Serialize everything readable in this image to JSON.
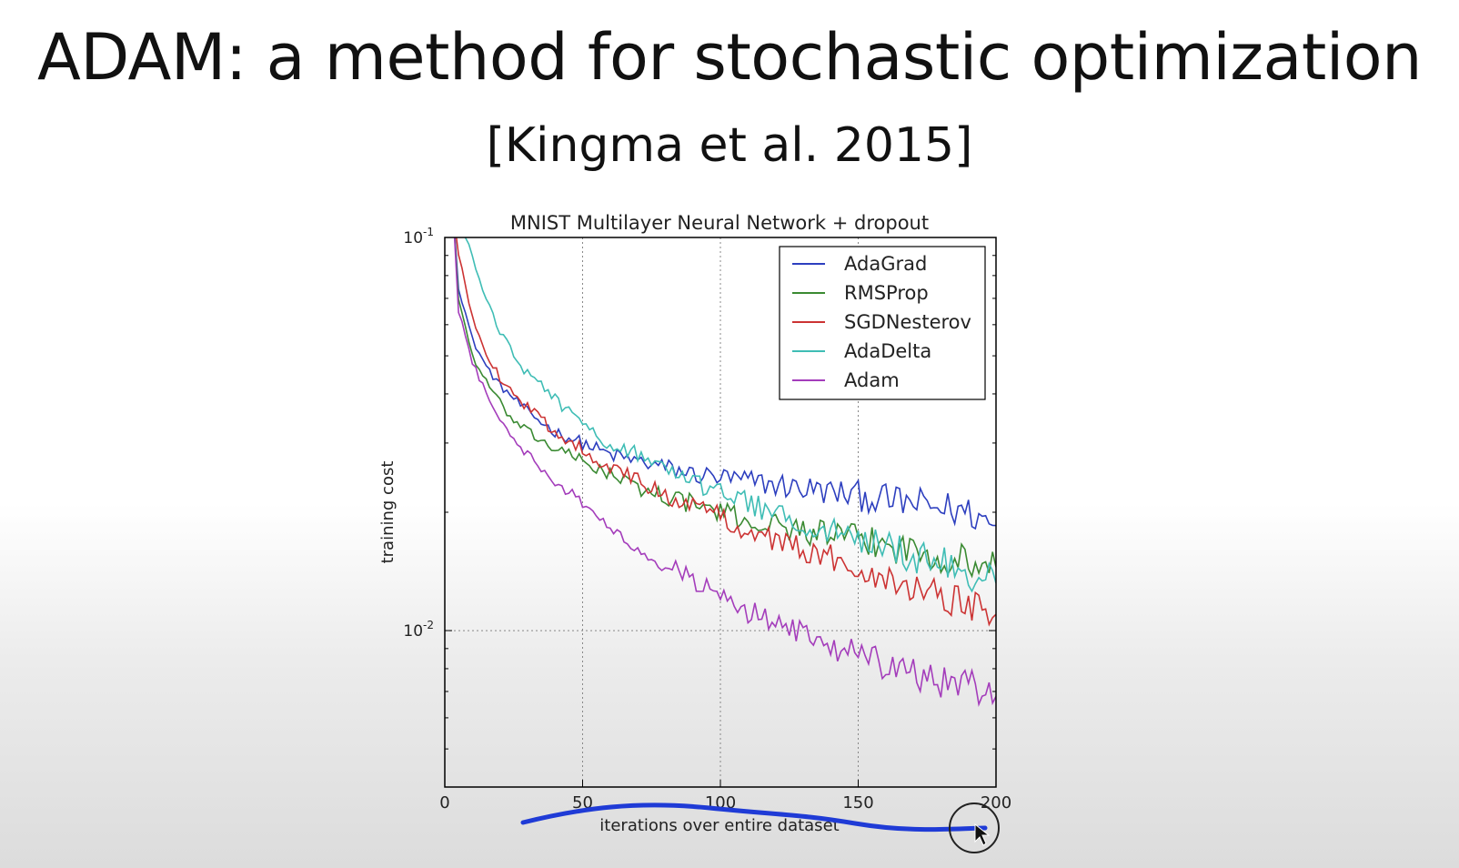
{
  "slide": {
    "title": "ADAM: a method for stochastic optimization",
    "subtitle": "[Kingma et al. 2015]"
  },
  "chart_data": {
    "type": "line",
    "title": "MNIST Multilayer Neural Network + dropout",
    "xlabel": "iterations over entire dataset",
    "ylabel": "training cost",
    "xlim": [
      0,
      200
    ],
    "ylim": [
      0.004,
      0.1
    ],
    "yscale": "log",
    "grid": true,
    "legend_position": "top-right",
    "x_ticks": [
      {
        "value": 0,
        "label": "0"
      },
      {
        "value": 50,
        "label": "50"
      },
      {
        "value": 100,
        "label": "100"
      },
      {
        "value": 150,
        "label": "150"
      },
      {
        "value": 200,
        "label": "200"
      }
    ],
    "y_ticks": [
      {
        "value": 0.1,
        "base": "10",
        "exp": "-1"
      },
      {
        "value": 0.01,
        "base": "10",
        "exp": "-2"
      }
    ],
    "x": [
      5,
      10,
      15,
      20,
      25,
      30,
      40,
      50,
      60,
      70,
      80,
      90,
      100,
      110,
      120,
      130,
      140,
      150,
      160,
      170,
      180,
      190,
      200
    ],
    "series": [
      {
        "name": "AdaGrad",
        "color": "#2d3fbf",
        "values": [
          0.075,
          0.055,
          0.047,
          0.042,
          0.039,
          0.036,
          0.032,
          0.03,
          0.028,
          0.027,
          0.026,
          0.025,
          0.0245,
          0.024,
          0.0235,
          0.023,
          0.0225,
          0.022,
          0.0215,
          0.021,
          0.0205,
          0.02,
          0.0185
        ]
      },
      {
        "name": "RMSProp",
        "color": "#3a8a32",
        "values": [
          0.07,
          0.05,
          0.043,
          0.038,
          0.034,
          0.032,
          0.029,
          0.027,
          0.025,
          0.023,
          0.022,
          0.021,
          0.02,
          0.019,
          0.0185,
          0.018,
          0.0175,
          0.017,
          0.0165,
          0.016,
          0.0155,
          0.015,
          0.0145
        ]
      },
      {
        "name": "SGDNesterov",
        "color": "#cc3333",
        "values": [
          0.09,
          0.063,
          0.051,
          0.044,
          0.04,
          0.037,
          0.032,
          0.029,
          0.026,
          0.024,
          0.022,
          0.021,
          0.0195,
          0.018,
          0.017,
          0.016,
          0.0152,
          0.0145,
          0.0138,
          0.013,
          0.0123,
          0.0117,
          0.011
        ]
      },
      {
        "name": "AdaDelta",
        "color": "#3fbdb5",
        "values": [
          0.11,
          0.09,
          0.07,
          0.058,
          0.05,
          0.045,
          0.039,
          0.033,
          0.03,
          0.028,
          0.026,
          0.024,
          0.0225,
          0.021,
          0.02,
          0.019,
          0.018,
          0.017,
          0.0162,
          0.0155,
          0.0148,
          0.014,
          0.0132
        ]
      },
      {
        "name": "Adam",
        "color": "#a43dbb",
        "values": [
          0.065,
          0.048,
          0.04,
          0.035,
          0.031,
          0.028,
          0.024,
          0.021,
          0.018,
          0.0165,
          0.0148,
          0.0135,
          0.0122,
          0.0112,
          0.0104,
          0.0097,
          0.0092,
          0.0087,
          0.0082,
          0.0078,
          0.0075,
          0.0072,
          0.0068
        ]
      }
    ]
  }
}
